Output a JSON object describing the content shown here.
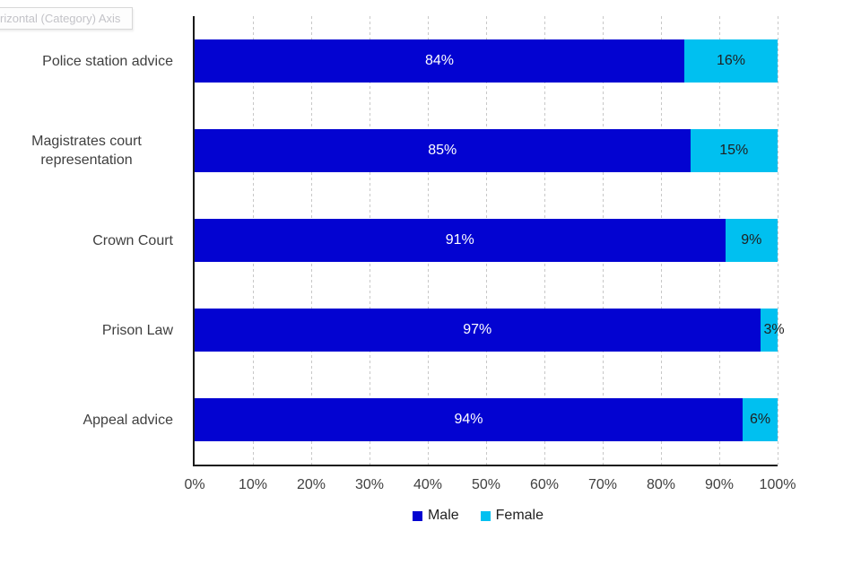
{
  "tooltip": {
    "text": "rizontal (Category) Axis"
  },
  "chart_data": {
    "type": "bar",
    "orientation": "horizontal",
    "stacked": true,
    "title": "",
    "categories": [
      "Police station advice",
      "Magistrates court representation",
      "Crown Court",
      "Prison Law",
      "Appeal advice"
    ],
    "series": [
      {
        "name": "Male",
        "color": "#0303D1",
        "label_color": "#FFFFFF",
        "values": [
          84,
          85,
          91,
          97,
          94
        ],
        "labels": [
          "84%",
          "85%",
          "91%",
          "97%",
          "94%"
        ]
      },
      {
        "name": "Female",
        "color": "#00C0F0",
        "label_color": "#1F1F1F",
        "values": [
          16,
          15,
          9,
          3,
          6
        ],
        "labels": [
          "16%",
          "15%",
          "9%",
          "3%",
          "6%"
        ]
      }
    ],
    "x_axis": {
      "min": 0,
      "max": 100,
      "tick_labels": [
        "0%",
        "10%",
        "20%",
        "30%",
        "40%",
        "50%",
        "60%",
        "70%",
        "80%",
        "90%",
        "100%"
      ],
      "gridlines": "dashed-vertical"
    },
    "legend": {
      "position": "bottom",
      "entries": [
        {
          "label": "Male",
          "color": "#0303D1"
        },
        {
          "label": "Female",
          "color": "#00C0F0"
        }
      ]
    }
  },
  "style": {
    "axis_line_color": "#1A1A1A",
    "gridline_color": "#C8C8C8",
    "axis_text_color": "#404040",
    "tooltip_text_color": "#C3C3C8",
    "background": "#FFFFFF"
  }
}
